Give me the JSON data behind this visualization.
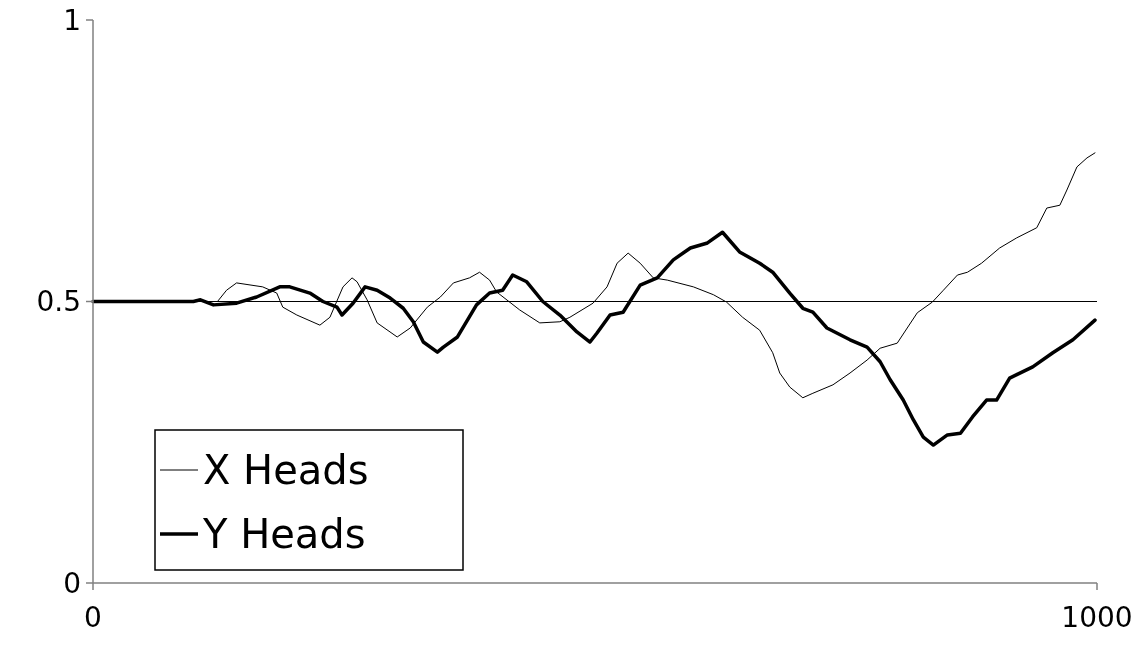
{
  "chart_data": {
    "type": "line",
    "xlim": [
      0,
      1000
    ],
    "xticks": [
      0,
      1000
    ],
    "ylim": [
      0,
      1
    ],
    "yticks": [
      0,
      0.5,
      1
    ],
    "grid": false,
    "legend": "bottom left",
    "ref_lines": [
      {
        "axis": "y",
        "value": 0.5,
        "color": "#000000"
      }
    ],
    "series": [
      {
        "name": "X Heads",
        "color": "#000000",
        "x": [
          0,
          124,
          133,
          143,
          169,
          183,
          189,
          203,
          226,
          236,
          249,
          258,
          263,
          273,
          283,
          303,
          316,
          333,
          346,
          359,
          375,
          385,
          395,
          402,
          425,
          445,
          465,
          475,
          498,
          512,
          522,
          533,
          545,
          558,
          572,
          598,
          618,
          631,
          647,
          664,
          677,
          684,
          694,
          707,
          717,
          737,
          754,
          771,
          784,
          801,
          821,
          836,
          847,
          861,
          871,
          885,
          903,
          920,
          940,
          950,
          963,
          970,
          980,
          990,
          998
        ],
        "values": [
          0.5,
          0.5,
          0.52,
          0.533,
          0.526,
          0.515,
          0.49,
          0.476,
          0.458,
          0.472,
          0.526,
          0.542,
          0.535,
          0.503,
          0.462,
          0.437,
          0.453,
          0.49,
          0.508,
          0.533,
          0.542,
          0.552,
          0.538,
          0.517,
          0.485,
          0.462,
          0.464,
          0.472,
          0.497,
          0.526,
          0.568,
          0.586,
          0.568,
          0.542,
          0.538,
          0.526,
          0.512,
          0.499,
          0.472,
          0.449,
          0.409,
          0.373,
          0.348,
          0.329,
          0.337,
          0.352,
          0.373,
          0.396,
          0.417,
          0.426,
          0.48,
          0.499,
          0.52,
          0.547,
          0.552,
          0.568,
          0.595,
          0.613,
          0.631,
          0.666,
          0.671,
          0.698,
          0.739,
          0.755,
          0.764
        ]
      },
      {
        "name": "Y Heads",
        "color": "#000000",
        "x": [
          0,
          100,
          107,
          120,
          143,
          163,
          186,
          196,
          216,
          229,
          243,
          248,
          259,
          271,
          283,
          296,
          309,
          319,
          329,
          343,
          349,
          363,
          382,
          395,
          408,
          418,
          432,
          448,
          465,
          482,
          495,
          502,
          515,
          528,
          545,
          562,
          578,
          595,
          612,
          627,
          644,
          664,
          677,
          694,
          707,
          717,
          731,
          754,
          771,
          784,
          794,
          807,
          817,
          827,
          837,
          851,
          864,
          876,
          890,
          900,
          913,
          936,
          956,
          976,
          998
        ],
        "values": [
          0.5,
          0.5,
          0.503,
          0.494,
          0.497,
          0.508,
          0.526,
          0.526,
          0.515,
          0.5,
          0.49,
          0.476,
          0.497,
          0.526,
          0.52,
          0.506,
          0.488,
          0.464,
          0.428,
          0.41,
          0.419,
          0.437,
          0.494,
          0.515,
          0.52,
          0.547,
          0.535,
          0.5,
          0.476,
          0.446,
          0.428,
          0.444,
          0.476,
          0.481,
          0.529,
          0.542,
          0.574,
          0.595,
          0.604,
          0.623,
          0.588,
          0.568,
          0.552,
          0.515,
          0.488,
          0.481,
          0.453,
          0.432,
          0.419,
          0.393,
          0.361,
          0.325,
          0.29,
          0.259,
          0.245,
          0.263,
          0.266,
          0.295,
          0.325,
          0.325,
          0.364,
          0.384,
          0.409,
          0.432,
          0.467
        ]
      }
    ]
  }
}
